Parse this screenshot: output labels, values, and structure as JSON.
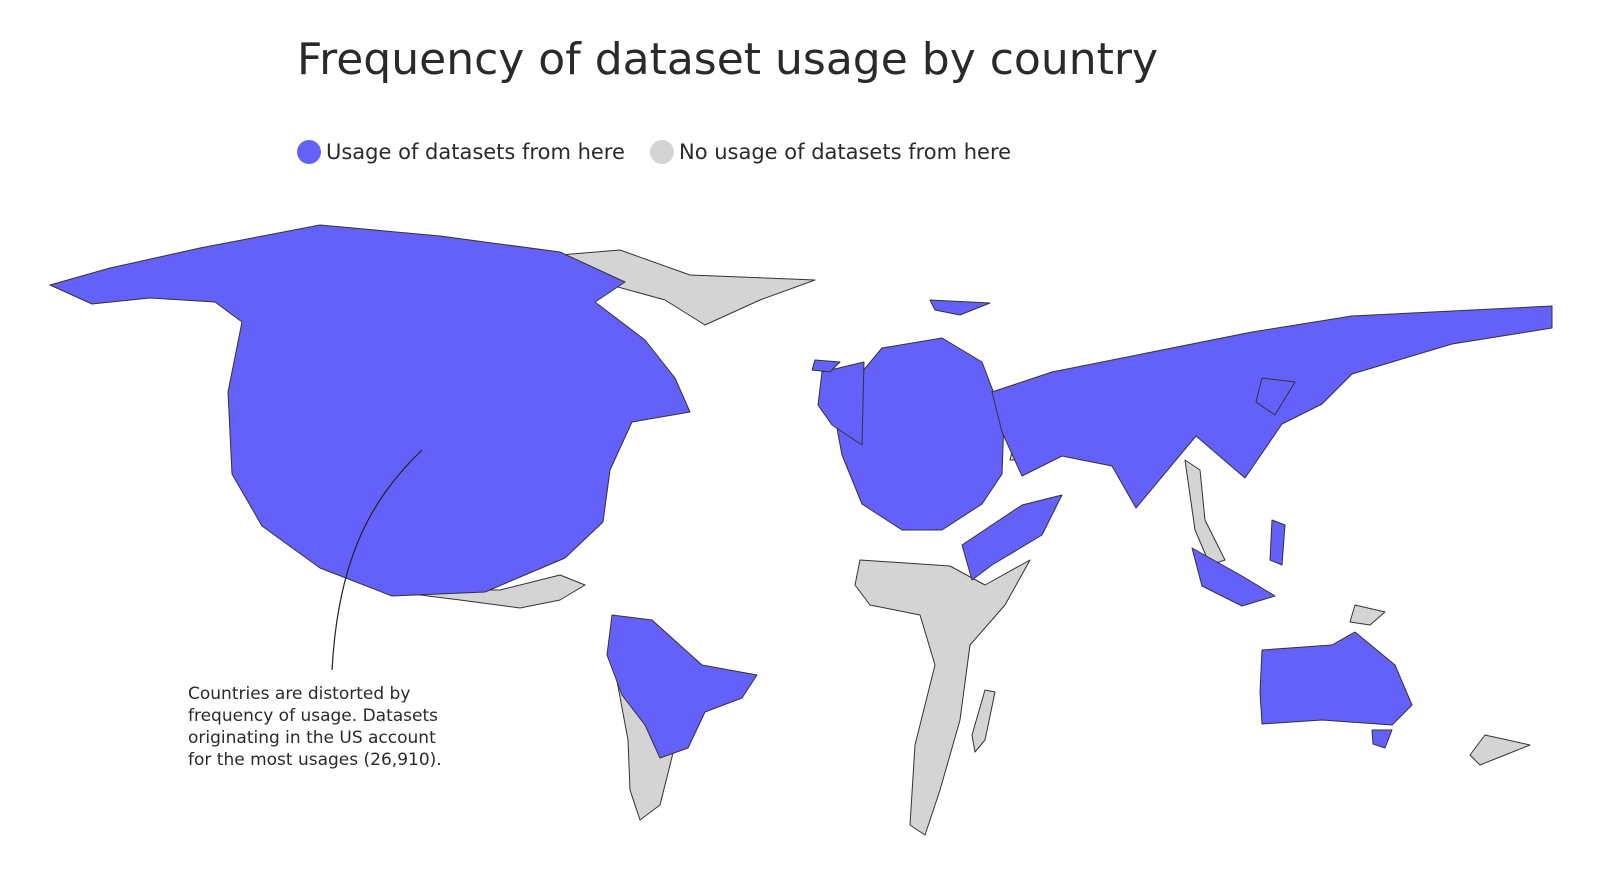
{
  "title": "Frequency of dataset usage by country",
  "legend": [
    {
      "label": "Usage of datasets from here",
      "color": "#6361f9"
    },
    {
      "label": "No usage of datasets from here",
      "color": "#d4d4d4"
    }
  ],
  "annotation": {
    "lines": [
      "Countries are distorted by",
      "frequency of usage. Datasets",
      "originating in the US account",
      "for the most usages (26,910)."
    ]
  }
}
